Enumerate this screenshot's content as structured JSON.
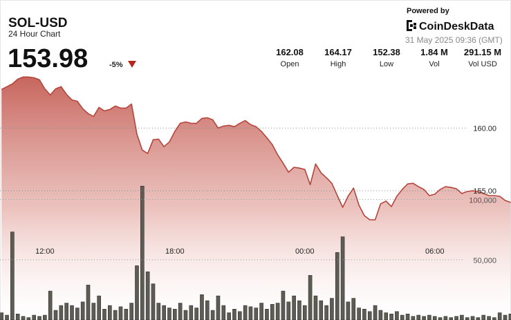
{
  "header": {
    "title": "SOL-USD",
    "subtitle": "24 Hour Chart",
    "price": "153.98",
    "change": "-5%",
    "powered_by": "Powered by",
    "brand": "CoinDeskData",
    "timestamp": "31 May 2025 09:36 (GMT)"
  },
  "stats": [
    {
      "value": "162.08",
      "label": "Open"
    },
    {
      "value": "164.17",
      "label": "High"
    },
    {
      "value": "152.38",
      "label": "Low"
    },
    {
      "value": "1.84 M",
      "label": "Vol"
    },
    {
      "value": "291.15 M",
      "label": "Vol USD"
    }
  ],
  "chart_data": {
    "type": "line",
    "x": [
      10,
      10.25,
      10.5,
      10.75,
      11,
      11.25,
      11.5,
      11.75,
      12,
      12.25,
      12.5,
      12.75,
      13,
      13.25,
      13.5,
      13.75,
      14,
      14.25,
      14.5,
      14.75,
      15,
      15.25,
      15.5,
      15.75,
      16,
      16.25,
      16.5,
      16.75,
      17,
      17.25,
      17.5,
      17.75,
      18,
      18.25,
      18.5,
      18.75,
      19,
      19.25,
      19.5,
      19.75,
      20,
      20.25,
      20.5,
      20.75,
      21,
      21.25,
      21.5,
      21.75,
      22,
      22.25,
      22.5,
      22.75,
      23,
      23.25,
      23.5,
      23.75,
      24,
      24.25,
      24.5,
      24.75,
      25,
      25.25,
      25.5,
      25.75,
      26,
      26.25,
      26.5,
      26.75,
      27,
      27.25,
      27.5,
      27.75,
      28,
      28.25,
      28.5,
      28.75,
      29,
      29.25,
      29.5,
      29.75,
      30,
      30.25,
      30.5,
      30.75,
      31,
      31.25,
      31.5,
      31.75,
      32,
      32.25,
      32.5,
      32.75,
      33,
      33.25,
      33.5
    ],
    "series": [
      {
        "color": "#b5443a",
        "values": [
          163.08,
          163.3,
          163.52,
          163.9,
          164.07,
          164.07,
          164.01,
          163.85,
          163.13,
          162.64,
          163.13,
          163.3,
          162.69,
          162.25,
          162.14,
          161.54,
          161.15,
          160.93,
          161.65,
          161.37,
          161.48,
          161.76,
          161.59,
          161.59,
          161.92,
          159.51,
          158.24,
          157.97,
          159.07,
          159.12,
          158.52,
          158.9,
          159.73,
          160.38,
          160.49,
          160.38,
          160.38,
          160.77,
          160.82,
          160.66,
          160.0,
          160.16,
          160.22,
          160.11,
          160.38,
          160.6,
          160.27,
          160.11,
          159.73,
          159.23,
          158.68,
          157.86,
          157.2,
          156.48,
          156.87,
          156.81,
          156.7,
          155.49,
          157.14,
          156.43,
          156.04,
          155.6,
          154.62,
          153.68,
          154.56,
          155.22,
          153.85,
          153.02,
          152.69,
          152.69,
          153.96,
          154.18,
          153.74,
          154.56,
          155.11,
          155.55,
          155.6,
          155.33,
          155.11,
          154.62,
          154.73,
          155.11,
          155.33,
          155.27,
          155.16,
          154.78,
          154.95,
          155.0,
          154.95,
          154.78,
          154.62,
          154.62,
          154.56,
          154.23,
          154.07
        ]
      },
      {
        "type": "bar",
        "axis": "y2",
        "color": "#5d5d55",
        "values": [
          6000,
          4000,
          73000,
          5000,
          3000,
          2000,
          4000,
          3000,
          4000,
          24000,
          8000,
          12000,
          14000,
          12000,
          10000,
          15000,
          29000,
          14000,
          20000,
          9000,
          12000,
          8000,
          11000,
          9000,
          14000,
          45000,
          111000,
          40000,
          30000,
          14000,
          12000,
          10000,
          9000,
          14000,
          8000,
          12000,
          10000,
          21000,
          16000,
          8000,
          20000,
          12000,
          6000,
          9000,
          7000,
          12000,
          11000,
          10000,
          14000,
          9000,
          13000,
          14000,
          24000,
          15000,
          20000,
          16000,
          12000,
          37000,
          20000,
          16000,
          12000,
          18000,
          56000,
          69000,
          15000,
          18000,
          10000,
          9000,
          7000,
          12000,
          8000,
          6000,
          5000,
          7000,
          4000,
          5000,
          3000,
          4000,
          3000,
          4000,
          3000,
          2000,
          3000,
          2000,
          3000,
          4000,
          2000,
          3000,
          2000,
          4000,
          3000,
          2000,
          6000,
          4000,
          5000
        ]
      }
    ],
    "xlim": [
      9.93,
      33.52
    ],
    "xticks": [
      {
        "value": 12,
        "label": "12:00"
      },
      {
        "value": 18,
        "label": "18:00"
      },
      {
        "value": 24,
        "label": "00:00"
      },
      {
        "value": 30,
        "label": "06:00"
      }
    ],
    "ylim": [
      144.7,
      164.7
    ],
    "yticks": [
      {
        "value": 155,
        "label": "155.00"
      },
      {
        "value": 160,
        "label": "160.00"
      }
    ],
    "y2lim": [
      0,
      208000
    ],
    "y2ticks": [
      {
        "value": 50000,
        "label": "50,000"
      },
      {
        "value": 100000,
        "label": "100,000"
      }
    ],
    "grid": true
  }
}
